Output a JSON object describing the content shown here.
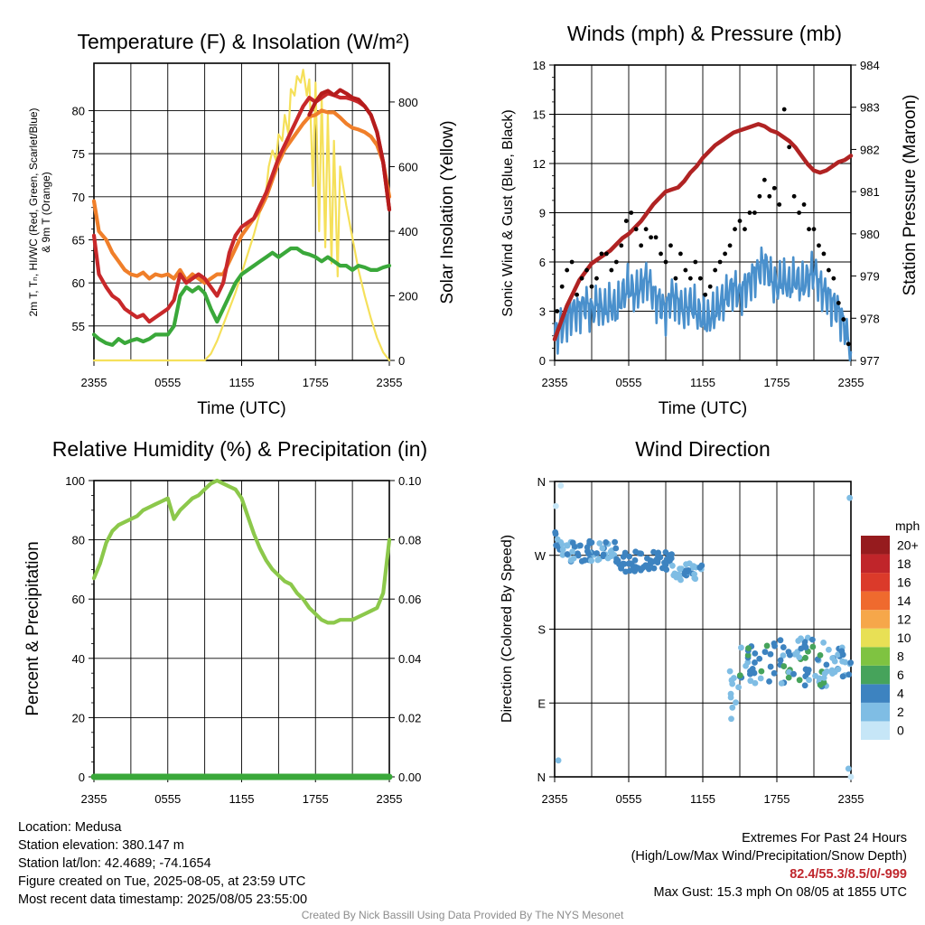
{
  "panels": {
    "temp": {
      "title": "Temperature (F) & Insolation (W/m²)",
      "ylabel_left_line1": "2m T, Tₙ, HI/WC (Red, Green, Scarlet/Blue)",
      "ylabel_left_line2": "& 9m T (Orange)",
      "ylabel_right": "Solar Insolation (Yellow)",
      "xlabel": "Time (UTC)"
    },
    "wind": {
      "title": "Winds (mph) & Pressure (mb)",
      "ylabel_left": "Sonic Wind & Gust (Blue, Black)",
      "ylabel_right": "Station Pressure (Maroon)",
      "xlabel": "Time (UTC)"
    },
    "rh": {
      "title": "Relative Humidity (%) & Precipitation (in)",
      "ylabel_left": "Percent & Precipitation"
    },
    "dir": {
      "title": "Wind Direction",
      "ylabel_left": "Direction (Colored By Speed)",
      "legend_title": "mph"
    }
  },
  "info": {
    "location": "Location: Medusa",
    "elevation": "Station elevation: 380.147 m",
    "latlon": "Station lat/lon: 42.4689; -74.1654",
    "created": "Figure created on Tue, 2025-08-05, at 23:59 UTC",
    "recent": "Most recent data timestamp: 2025/08/05 23:55:00",
    "extremes_title": "Extremes For Past 24 Hours",
    "extremes_sub": "(High/Low/Max Wind/Precipitation/Snow Depth)",
    "extremes_values": "82.4/55.3/8.5/0/-999",
    "max_gust": "Max Gust: 15.3 mph On 08/05 at 1855 UTC",
    "credit": "Created By Nick Bassill Using Data Provided By The NYS Mesonet"
  },
  "colors": {
    "temp_red": "#c8282a",
    "temp_orange": "#f07f2a",
    "temp_green": "#3aa83a",
    "scarlet": "#b51c1c",
    "solar_yellow": "#f5e05a",
    "wind_blue": "#4a90cc",
    "gust_black": "#000000",
    "pressure_maroon": "#b02323",
    "rh_green": "#8cc84b",
    "precip_green": "#3aa83a"
  },
  "chart_data": [
    {
      "type": "line",
      "id": "temp",
      "x_ticks": [
        "2355",
        "0555",
        "1155",
        "1755",
        "2355"
      ],
      "x_hours": [
        0,
        24
      ],
      "ylim": [
        51,
        85.5
      ],
      "y_ticks": [
        55,
        60,
        65,
        70,
        75,
        80
      ],
      "y2lim": [
        0,
        920
      ],
      "y2_ticks": [
        0,
        200,
        400,
        600,
        800
      ],
      "series": [
        {
          "key": "orange",
          "axis": "left",
          "x": [
            0,
            0.4,
            1,
            1.5,
            2,
            2.5,
            3,
            3.5,
            4,
            4.5,
            5,
            5.5,
            6,
            6.5,
            7,
            7.5,
            8,
            8.5,
            9,
            9.5,
            10,
            10.5,
            11,
            11.5,
            12,
            12.5,
            13,
            13.5,
            14,
            14.5,
            15,
            15.5,
            16,
            16.5,
            17,
            17.5,
            18,
            18.5,
            19,
            19.5,
            20,
            20.5,
            21,
            21.5,
            22,
            22.5,
            23,
            23.5,
            24
          ],
          "y": [
            69.5,
            66,
            65,
            63.5,
            62.5,
            61.5,
            61,
            60.8,
            61.2,
            60.5,
            61,
            60.8,
            61,
            60.5,
            61.5,
            60.3,
            61,
            60.5,
            60,
            60.5,
            61,
            61,
            62.5,
            64,
            65.5,
            66.5,
            67.5,
            68.5,
            70,
            72,
            74,
            75.5,
            76.5,
            77.5,
            78.5,
            79.3,
            79.5,
            80,
            79.8,
            79.8,
            79.2,
            78.5,
            78,
            77.8,
            77.5,
            77,
            76,
            74,
            70
          ]
        },
        {
          "key": "red",
          "axis": "left",
          "x": [
            0,
            0.4,
            1,
            1.5,
            2,
            2.5,
            3,
            3.5,
            4,
            4.5,
            5,
            5.5,
            6,
            6.5,
            7,
            7.5,
            8,
            8.5,
            9,
            9.5,
            10,
            10.5,
            11,
            11.5,
            12,
            12.5,
            13,
            13.5,
            14,
            14.5,
            15,
            15.5,
            16,
            16.5,
            17,
            17.5,
            18,
            18.5,
            19,
            19.5,
            20,
            20.5,
            21,
            21.5,
            22,
            22.5,
            23,
            23.5,
            24
          ],
          "y": [
            65.5,
            61,
            59.5,
            58.5,
            58,
            57,
            56.5,
            56,
            56.3,
            55.5,
            56,
            56.5,
            57,
            58,
            61,
            60,
            60.5,
            61,
            60.5,
            59.5,
            58.5,
            60,
            63.5,
            65.5,
            66.5,
            67,
            67.5,
            69,
            70.5,
            72.5,
            74.5,
            76,
            77.5,
            79,
            80.5,
            81.5,
            81,
            81.5,
            82,
            81.8,
            81.5,
            81.5,
            81.3,
            81,
            80.5,
            79.5,
            77.5,
            74,
            68.5
          ]
        },
        {
          "key": "green",
          "axis": "left",
          "x": [
            0,
            0.4,
            1,
            1.5,
            2,
            2.5,
            3,
            3.5,
            4,
            4.5,
            5,
            5.5,
            6,
            6.5,
            7,
            7.5,
            8,
            8.5,
            9,
            9.5,
            10,
            10.5,
            11,
            11.5,
            12,
            12.5,
            13,
            13.5,
            14,
            14.5,
            15,
            15.5,
            16,
            16.5,
            17,
            17.5,
            18,
            18.5,
            19,
            19.5,
            20,
            20.5,
            21,
            21.5,
            22,
            22.5,
            23,
            23.5,
            24
          ],
          "y": [
            54,
            53.5,
            53,
            52.8,
            53.5,
            53,
            53.3,
            53.5,
            53.2,
            53.5,
            54,
            54,
            54,
            55,
            58.5,
            59.5,
            59,
            59.5,
            58.8,
            57,
            55.5,
            57,
            58.5,
            60,
            61,
            61.5,
            62,
            62.5,
            63,
            63.5,
            63,
            63.5,
            64,
            64,
            63.5,
            63.3,
            63,
            62.5,
            63,
            62.5,
            62,
            62,
            61.5,
            62,
            61.8,
            61.5,
            61.5,
            61.8,
            62
          ]
        },
        {
          "key": "scarlet",
          "axis": "left",
          "x": [
            17.5,
            18,
            18.5,
            19,
            19.5,
            20,
            20.5,
            21,
            21.5,
            22,
            22.5,
            23,
            23.5,
            24
          ],
          "y": [
            79.5,
            81,
            82,
            82.3,
            81.8,
            82.4,
            82,
            81.5,
            81.3,
            80.5,
            79.5,
            77.5,
            74,
            68.5
          ]
        },
        {
          "key": "solar",
          "axis": "right",
          "x": [
            0,
            9,
            9.5,
            10,
            10.5,
            11,
            11.5,
            12,
            12.5,
            13,
            13.5,
            14,
            14.2,
            14.5,
            14.8,
            15,
            15.3,
            15.5,
            15.8,
            16,
            16.3,
            16.5,
            16.8,
            17,
            17.3,
            17.5,
            17.8,
            18,
            18.3,
            18.5,
            18.8,
            19,
            19.3,
            19.5,
            19.8,
            20,
            20.5,
            21,
            21.5,
            22,
            22.5,
            23,
            23.5,
            24
          ],
          "y": [
            0,
            0,
            20,
            60,
            110,
            160,
            210,
            270,
            330,
            390,
            460,
            530,
            600,
            650,
            620,
            700,
            680,
            760,
            700,
            840,
            820,
            880,
            860,
            900,
            820,
            870,
            540,
            860,
            400,
            820,
            350,
            760,
            300,
            680,
            260,
            600,
            480,
            380,
            280,
            200,
            130,
            70,
            25,
            0
          ]
        }
      ]
    },
    {
      "type": "line",
      "id": "wind",
      "x_ticks": [
        "2355",
        "0555",
        "1155",
        "1755",
        "2355"
      ],
      "x_hours": [
        0,
        24
      ],
      "ylim": [
        0,
        18
      ],
      "y_ticks": [
        0,
        3,
        6,
        9,
        12,
        15,
        18
      ],
      "y2lim": [
        977,
        984
      ],
      "y2_ticks": [
        977,
        978,
        979,
        980,
        981,
        982,
        983,
        984
      ],
      "series": [
        {
          "key": "wind",
          "axis": "left",
          "x": [
            0,
            0.5,
            1,
            1.5,
            2,
            2.5,
            3,
            3.5,
            4,
            4.5,
            5,
            5.5,
            6,
            6.5,
            7,
            7.5,
            8,
            8.5,
            9,
            9.5,
            10,
            10.5,
            11,
            11.5,
            12,
            12.5,
            13,
            13.5,
            14,
            14.5,
            15,
            15.5,
            16,
            16.5,
            17,
            17.5,
            18,
            18.5,
            19,
            19.5,
            20,
            20.5,
            21,
            21.5,
            22,
            22.5,
            23,
            23.5,
            24
          ],
          "y": [
            1.5,
            2,
            2.5,
            3,
            3,
            3.5,
            3,
            3.5,
            3,
            3.5,
            3,
            4,
            4.5,
            4,
            4.5,
            5,
            4,
            3.5,
            3,
            4,
            3.5,
            3,
            3.5,
            3,
            2.5,
            2.5,
            3,
            3.5,
            4,
            4.5,
            4,
            4.5,
            5,
            5.5,
            6,
            5,
            4.5,
            5,
            4.5,
            5,
            4.5,
            5,
            5.5,
            4.5,
            4,
            3.5,
            3,
            2,
            0.5
          ]
        },
        {
          "key": "pressure",
          "axis": "right",
          "x": [
            0,
            0.5,
            1,
            1.5,
            2,
            2.5,
            3,
            3.5,
            4,
            4.5,
            5,
            5.5,
            6,
            6.5,
            7,
            7.5,
            8,
            8.5,
            9,
            9.5,
            10,
            10.5,
            11,
            11.5,
            12,
            12.5,
            13,
            13.5,
            14,
            14.5,
            15,
            15.5,
            16,
            16.5,
            17,
            17.5,
            18,
            18.5,
            19,
            19.5,
            20,
            20.5,
            21,
            21.5,
            22,
            22.5,
            23,
            23.5,
            24
          ],
          "y": [
            977.5,
            977.9,
            978.3,
            978.6,
            978.9,
            979.1,
            979.3,
            979.4,
            979.5,
            979.6,
            979.75,
            979.9,
            980.0,
            980.15,
            980.3,
            980.5,
            980.7,
            980.85,
            981.0,
            981.05,
            981.1,
            981.25,
            981.45,
            981.6,
            981.8,
            981.95,
            982.1,
            982.2,
            982.3,
            982.4,
            982.45,
            982.5,
            982.55,
            982.6,
            982.55,
            982.45,
            982.4,
            982.3,
            982.2,
            982.05,
            981.85,
            981.65,
            981.5,
            981.45,
            981.5,
            981.6,
            981.7,
            981.75,
            981.85
          ]
        },
        {
          "key": "gust",
          "axis": "left",
          "type": "scatter",
          "x": [
            0.2,
            0.6,
            1,
            1.4,
            1.8,
            2.2,
            2.6,
            3,
            3.4,
            3.8,
            4.2,
            4.6,
            5,
            5.4,
            5.8,
            6.2,
            6.6,
            7,
            7.4,
            7.8,
            8.2,
            8.6,
            9,
            9.4,
            9.8,
            10.2,
            10.6,
            11,
            11.4,
            11.8,
            12.2,
            12.6,
            13,
            13.4,
            13.8,
            14.2,
            14.6,
            15,
            15.4,
            15.8,
            16.2,
            16.6,
            17,
            17.4,
            17.8,
            18.2,
            18.6,
            19,
            19.4,
            19.8,
            20.2,
            20.6,
            21,
            21.4,
            21.8,
            22.2,
            22.6,
            23,
            23.4,
            23.8
          ],
          "y": [
            3,
            4.5,
            5.5,
            6,
            4,
            5,
            5.5,
            4.5,
            5,
            6.5,
            6.5,
            5.5,
            6,
            7,
            8.5,
            9,
            8,
            7,
            8,
            7.5,
            7.5,
            6.5,
            6,
            7,
            5,
            6.5,
            5.5,
            5,
            6,
            5,
            4,
            4.5,
            5.5,
            6,
            6.5,
            7,
            8,
            8.5,
            8,
            9,
            9,
            10,
            11,
            10,
            10.5,
            9.5,
            15.3,
            13,
            10,
            9,
            9.5,
            8,
            8,
            7,
            6.5,
            5.5,
            5,
            3.5,
            2.5,
            1
          ]
        }
      ]
    },
    {
      "type": "line",
      "id": "rh",
      "x_ticks": [
        "2355",
        "0555",
        "1155",
        "1755",
        "2355"
      ],
      "x_hours": [
        0,
        24
      ],
      "ylim": [
        0,
        100
      ],
      "y_ticks": [
        0,
        20,
        40,
        60,
        80,
        100
      ],
      "y2lim": [
        0,
        0.1
      ],
      "y2_ticks": [
        "0.00",
        "0.02",
        "0.04",
        "0.06",
        "0.08",
        "0.10"
      ],
      "series": [
        {
          "key": "rh",
          "axis": "left",
          "x": [
            0,
            0.5,
            1,
            1.5,
            2,
            2.5,
            3,
            3.5,
            4,
            4.5,
            5,
            5.5,
            6,
            6.5,
            7,
            7.5,
            8,
            8.5,
            9,
            9.5,
            10,
            10.5,
            11,
            11.5,
            12,
            12.5,
            13,
            13.5,
            14,
            14.5,
            15,
            15.5,
            16,
            16.5,
            17,
            17.5,
            18,
            18.5,
            19,
            19.5,
            20,
            20.5,
            21,
            21.5,
            22,
            22.5,
            23,
            23.5,
            24
          ],
          "y": [
            67,
            72,
            79,
            83,
            85,
            86,
            87,
            88,
            90,
            91,
            92,
            93,
            94,
            87,
            90,
            92,
            94,
            95,
            97,
            99,
            100,
            99,
            98,
            97,
            94,
            88,
            82,
            77,
            73,
            70,
            68,
            66,
            65,
            62,
            60,
            57,
            55,
            53,
            52,
            52,
            53,
            53,
            53,
            54,
            55,
            56,
            57,
            62,
            80
          ]
        },
        {
          "key": "precip",
          "axis": "right",
          "x": [
            0,
            24
          ],
          "y": [
            0,
            0
          ]
        }
      ]
    },
    {
      "type": "scatter",
      "id": "dir",
      "x_ticks": [
        "2355",
        "0555",
        "1155",
        "1755",
        "2355"
      ],
      "x_hours": [
        0,
        24
      ],
      "ylim": [
        0,
        360
      ],
      "y_ticks": [
        "N",
        "E",
        "S",
        "W",
        "N"
      ],
      "legend": {
        "labels": [
          "0",
          "2",
          "4",
          "6",
          "8",
          "10",
          "12",
          "14",
          "16",
          "18",
          "20+"
        ],
        "colors": [
          "#c6e6f7",
          "#7fbde4",
          "#3d83c0",
          "#46a35b",
          "#7fc341",
          "#e8e055",
          "#f6a74a",
          "#ef6a2e",
          "#db3a2a",
          "#c0252a",
          "#961b1e"
        ]
      }
    }
  ]
}
